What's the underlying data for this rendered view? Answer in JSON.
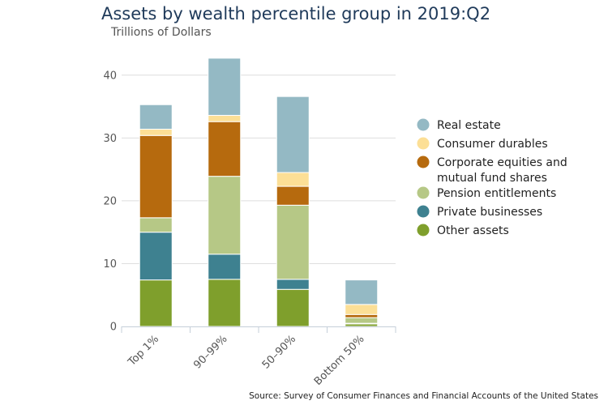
{
  "chart_data": {
    "type": "bar",
    "stacked": true,
    "title": "Assets by wealth percentile group in 2019:Q2",
    "subtitle": "Trillions of Dollars",
    "source": "Source: Survey of Consumer Finances and Financial Accounts of the United States",
    "categories": [
      "Top 1%",
      "90–99%",
      "50–90%",
      "Bottom 50%"
    ],
    "ylim": [
      0,
      45
    ],
    "yticks": [
      0,
      10,
      20,
      30,
      40
    ],
    "legend_position": "right",
    "series": [
      {
        "name": "Other assets",
        "color": "#7f9f2c",
        "values": [
          7.4,
          7.5,
          5.9,
          0.4
        ]
      },
      {
        "name": "Private businesses",
        "color": "#3e8190",
        "values": [
          7.6,
          4.0,
          1.6,
          0.1
        ]
      },
      {
        "name": "Pension entitlements",
        "color": "#b6c886",
        "values": [
          2.3,
          12.4,
          11.8,
          0.9
        ]
      },
      {
        "name": "Corporate equities and mutual fund shares",
        "color": "#b66a0e",
        "values": [
          13.1,
          8.7,
          3.0,
          0.5
        ]
      },
      {
        "name": "Consumer durables",
        "color": "#fcdf96",
        "values": [
          1.0,
          1.0,
          2.2,
          1.6
        ]
      },
      {
        "name": "Real estate",
        "color": "#94b9c4",
        "values": [
          3.9,
          9.1,
          12.1,
          3.9
        ]
      }
    ],
    "legend": [
      {
        "lines": [
          "Real estate"
        ],
        "color": "#94b9c4"
      },
      {
        "lines": [
          "Consumer durables"
        ],
        "color": "#fcdf96"
      },
      {
        "lines": [
          "Corporate equities and",
          "mutual fund shares"
        ],
        "color": "#b66a0e"
      },
      {
        "lines": [
          "Pension entitlements"
        ],
        "color": "#b6c886"
      },
      {
        "lines": [
          "Private businesses"
        ],
        "color": "#3e8190"
      },
      {
        "lines": [
          "Other assets"
        ],
        "color": "#7f9f2c"
      }
    ]
  }
}
